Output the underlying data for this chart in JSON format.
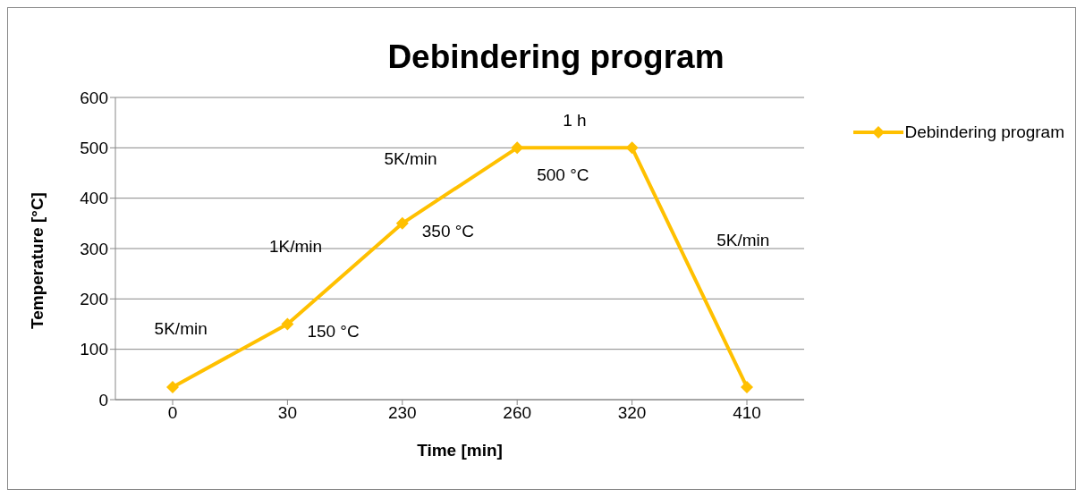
{
  "chart_data": {
    "type": "line",
    "title": "Debindering program",
    "xlabel": "Time [min]",
    "ylabel": "Temperature [°C]",
    "categories": [
      "0",
      "30",
      "230",
      "260",
      "320",
      "410"
    ],
    "series": [
      {
        "name": "Debindering program",
        "color": "#ffc000",
        "values": [
          25,
          150,
          350,
          500,
          500,
          25
        ]
      }
    ],
    "ylim": [
      0,
      600
    ],
    "yticks": [
      0,
      100,
      200,
      300,
      400,
      500,
      600
    ],
    "grid": "y",
    "legend": "top right",
    "marker": "diamond",
    "line_style": "solid",
    "annotations": [
      "5K/min",
      {
        "text": "150 °C",
        "x": "30",
        "y": 150
      },
      "1K/min",
      {
        "text": "350 °C",
        "x": "230",
        "y": 350
      },
      "5K/min",
      {
        "text": "500 °C",
        "x": "260",
        "y": 500
      },
      "1 h",
      "5K/min"
    ]
  }
}
